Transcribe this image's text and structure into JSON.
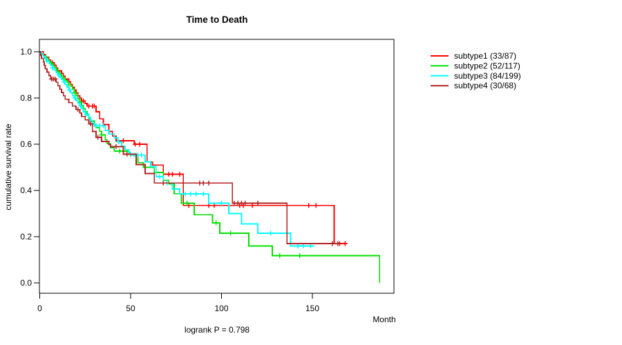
{
  "chart_data": {
    "type": "line",
    "variant": "kaplan-meier-step-curves",
    "title": "Time to Death",
    "footer": "logrank P = 0.798",
    "grid": false,
    "legend_position": "right-outside",
    "background": "#FFFFFF",
    "x_axis": {
      "label": "Month",
      "range": [
        0,
        195
      ],
      "tick_values": [
        0,
        50,
        100,
        150
      ],
      "tick_labels": [
        "0",
        "50",
        "100",
        "150"
      ]
    },
    "y_axis": {
      "label": "cumulative survival rate",
      "range": [
        0.0,
        1.0
      ],
      "tick_values": [
        0,
        0.2,
        0.4,
        0.6,
        0.8,
        1.0
      ],
      "tick_labels": [
        "0.0",
        "0.2",
        "0.4",
        "0.6",
        "0.8",
        "1.0"
      ]
    },
    "series": [
      {
        "name": "subtype1",
        "legend_label": "subtype1 (33/87)",
        "events": 33,
        "n": 87,
        "color": "#FF0000",
        "end_month": 169,
        "points": [
          [
            0,
            1.0
          ],
          [
            2,
            0.988
          ],
          [
            3,
            0.977
          ],
          [
            5,
            0.965
          ],
          [
            6,
            0.953
          ],
          [
            8,
            0.942
          ],
          [
            9,
            0.93
          ],
          [
            10,
            0.918
          ],
          [
            12,
            0.906
          ],
          [
            13,
            0.894
          ],
          [
            14,
            0.882
          ],
          [
            16,
            0.87
          ],
          [
            17,
            0.858
          ],
          [
            18,
            0.846
          ],
          [
            19,
            0.834
          ],
          [
            20,
            0.822
          ],
          [
            21,
            0.81
          ],
          [
            22,
            0.799
          ],
          [
            23,
            0.787
          ],
          [
            25,
            0.776
          ],
          [
            26,
            0.765
          ],
          [
            31,
            0.74
          ],
          [
            33,
            0.71
          ],
          [
            35,
            0.685
          ],
          [
            38,
            0.655
          ],
          [
            40,
            0.635
          ],
          [
            42,
            0.615
          ],
          [
            52,
            0.6
          ],
          [
            59,
            0.523
          ],
          [
            62,
            0.51
          ],
          [
            68,
            0.47
          ],
          [
            79,
            0.335
          ],
          [
            162,
            0.17
          ]
        ],
        "censor_months": [
          7,
          10,
          13,
          24,
          27,
          29,
          30,
          46,
          52.5,
          55,
          71,
          73,
          77,
          82,
          93,
          96,
          110,
          112,
          117,
          148,
          152,
          165,
          168
        ]
      },
      {
        "name": "subtype2",
        "legend_label": "subtype2 (52/117)",
        "events": 52,
        "n": 117,
        "color": "#00E000",
        "end_month": 187,
        "points": [
          [
            0,
            1.0
          ],
          [
            1,
            0.991
          ],
          [
            2,
            0.983
          ],
          [
            3,
            0.974
          ],
          [
            4,
            0.966
          ],
          [
            5,
            0.957
          ],
          [
            6,
            0.949
          ],
          [
            7,
            0.94
          ],
          [
            8,
            0.931
          ],
          [
            9,
            0.922
          ],
          [
            10,
            0.913
          ],
          [
            11,
            0.904
          ],
          [
            12,
            0.895
          ],
          [
            13,
            0.886
          ],
          [
            14,
            0.877
          ],
          [
            15,
            0.868
          ],
          [
            16,
            0.859
          ],
          [
            17,
            0.85
          ],
          [
            18,
            0.838
          ],
          [
            19,
            0.824
          ],
          [
            20,
            0.81
          ],
          [
            21,
            0.796
          ],
          [
            22,
            0.782
          ],
          [
            23,
            0.768
          ],
          [
            24,
            0.754
          ],
          [
            25,
            0.74
          ],
          [
            26,
            0.726
          ],
          [
            27,
            0.712
          ],
          [
            28,
            0.7
          ],
          [
            30,
            0.686
          ],
          [
            31,
            0.672
          ],
          [
            33,
            0.656
          ],
          [
            34,
            0.64
          ],
          [
            36,
            0.62
          ],
          [
            37,
            0.602
          ],
          [
            39,
            0.585
          ],
          [
            41,
            0.57
          ],
          [
            49,
            0.556
          ],
          [
            54,
            0.52
          ],
          [
            57,
            0.5
          ],
          [
            63,
            0.478
          ],
          [
            68,
            0.444
          ],
          [
            71,
            0.428
          ],
          [
            74,
            0.386
          ],
          [
            78,
            0.345
          ],
          [
            85,
            0.295
          ],
          [
            95,
            0.26
          ],
          [
            99,
            0.215
          ],
          [
            115,
            0.16
          ],
          [
            128,
            0.118
          ],
          [
            187,
            0.0
          ]
        ],
        "censor_months": [
          3.5,
          6.5,
          10,
          13,
          16,
          19,
          22,
          25,
          30,
          34,
          44,
          46,
          50,
          58,
          64,
          81,
          97,
          105,
          132,
          143
        ]
      },
      {
        "name": "subtype3",
        "legend_label": "subtype3 (84/199)",
        "events": 84,
        "n": 199,
        "color": "#00FFFF",
        "end_month": 151,
        "points": [
          [
            0,
            1.0
          ],
          [
            1,
            0.99
          ],
          [
            2,
            0.98
          ],
          [
            3,
            0.97
          ],
          [
            4,
            0.96
          ],
          [
            5,
            0.95
          ],
          [
            6,
            0.94
          ],
          [
            7,
            0.93
          ],
          [
            8,
            0.92
          ],
          [
            9,
            0.91
          ],
          [
            10,
            0.9
          ],
          [
            11,
            0.89
          ],
          [
            12,
            0.88
          ],
          [
            13,
            0.87
          ],
          [
            14,
            0.858
          ],
          [
            15,
            0.846
          ],
          [
            16,
            0.834
          ],
          [
            17,
            0.822
          ],
          [
            18,
            0.81
          ],
          [
            19,
            0.8
          ],
          [
            20,
            0.79
          ],
          [
            21,
            0.778
          ],
          [
            22,
            0.766
          ],
          [
            23,
            0.754
          ],
          [
            24,
            0.742
          ],
          [
            25,
            0.73
          ],
          [
            27,
            0.716
          ],
          [
            28,
            0.703
          ],
          [
            29,
            0.69
          ],
          [
            30,
            0.68
          ],
          [
            36,
            0.66
          ],
          [
            38,
            0.644
          ],
          [
            41,
            0.628
          ],
          [
            43,
            0.61
          ],
          [
            45,
            0.592
          ],
          [
            47,
            0.577
          ],
          [
            49,
            0.565
          ],
          [
            50,
            0.553
          ],
          [
            58,
            0.524
          ],
          [
            61,
            0.503
          ],
          [
            64,
            0.46
          ],
          [
            68,
            0.432
          ],
          [
            73,
            0.406
          ],
          [
            77,
            0.385
          ],
          [
            93,
            0.345
          ],
          [
            104,
            0.3
          ],
          [
            111,
            0.255
          ],
          [
            120,
            0.215
          ],
          [
            138,
            0.16
          ]
        ],
        "censor_months": [
          4,
          7,
          10.5,
          13.5,
          16.5,
          19.5,
          22.5,
          25.5,
          31,
          33,
          35,
          43.5,
          52,
          54,
          56,
          66,
          70,
          80,
          83,
          86,
          90,
          100,
          127,
          142,
          145,
          149
        ]
      },
      {
        "name": "subtype4",
        "legend_label": "subtype4 (30/68)",
        "events": 30,
        "n": 68,
        "color": "#B22222",
        "end_month": 166,
        "points": [
          [
            0,
            1.0
          ],
          [
            0.5,
            0.985
          ],
          [
            1,
            0.971
          ],
          [
            2,
            0.956
          ],
          [
            2.5,
            0.941
          ],
          [
            3,
            0.926
          ],
          [
            4,
            0.912
          ],
          [
            5,
            0.897
          ],
          [
            6,
            0.882
          ],
          [
            9,
            0.868
          ],
          [
            10,
            0.853
          ],
          [
            11,
            0.838
          ],
          [
            12,
            0.824
          ],
          [
            13,
            0.81
          ],
          [
            14,
            0.795
          ],
          [
            16,
            0.78
          ],
          [
            18,
            0.765
          ],
          [
            20,
            0.75
          ],
          [
            22,
            0.735
          ],
          [
            23,
            0.72
          ],
          [
            25,
            0.705
          ],
          [
            27,
            0.688
          ],
          [
            29,
            0.655
          ],
          [
            31,
            0.63
          ],
          [
            34,
            0.612
          ],
          [
            38,
            0.598
          ],
          [
            39,
            0.59
          ],
          [
            46,
            0.557
          ],
          [
            53,
            0.512
          ],
          [
            58,
            0.473
          ],
          [
            63,
            0.432
          ],
          [
            106,
            0.345
          ],
          [
            136,
            0.17
          ]
        ],
        "censor_months": [
          6.5,
          7.5,
          8.5,
          21,
          28,
          32,
          42,
          48,
          68,
          88,
          90,
          93,
          107,
          109,
          111,
          113,
          120,
          161,
          164
        ]
      }
    ]
  }
}
